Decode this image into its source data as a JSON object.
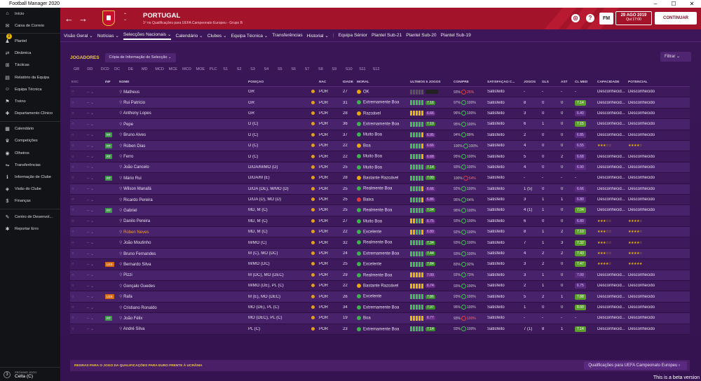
{
  "window": {
    "title": "Football Manager 2020",
    "controls": [
      "–",
      "☐",
      "✕"
    ]
  },
  "sidebar": {
    "items": [
      {
        "label": "Início",
        "icon": "home-icon"
      },
      {
        "label": "Caixa de Correio",
        "icon": "mail-icon",
        "badge": "2"
      },
      {
        "label": "Plantel",
        "icon": "squad-icon"
      },
      {
        "label": "Dinâmica",
        "icon": "dynamics-icon"
      },
      {
        "label": "Tácticas",
        "icon": "tactics-icon"
      },
      {
        "label": "Relatório da Equipa",
        "icon": "report-icon"
      },
      {
        "label": "Equipa Técnica",
        "icon": "staff-icon"
      },
      {
        "label": "Treino",
        "icon": "training-icon"
      },
      {
        "label": "Departamento Clínico",
        "icon": "medical-icon"
      },
      {
        "label": "Calendário",
        "icon": "calendar-icon"
      },
      {
        "label": "Competições",
        "icon": "trophy-icon"
      },
      {
        "label": "Olheiros",
        "icon": "scouting-icon"
      },
      {
        "label": "Transferências",
        "icon": "transfer-icon"
      },
      {
        "label": "Informação de Clube",
        "icon": "club-info-icon"
      },
      {
        "label": "Visão do Clube",
        "icon": "vision-icon"
      },
      {
        "label": "Finanças",
        "icon": "finance-icon"
      },
      {
        "label": "Centro de Desenvol...",
        "icon": "development-icon"
      },
      {
        "label": "Reportar Erro",
        "icon": "bug-icon"
      }
    ],
    "next_match": {
      "label": "PRÓXIMO JOGO",
      "value": "Celta (C)",
      "num": "3"
    }
  },
  "header": {
    "title": "PORTUGAL",
    "subtitle": "1º no Qualificações para UEFA Campeonato Europeu - Grupo B",
    "fm": "FM",
    "date": "29 AGO 2019",
    "time": "Qui 17:00",
    "continue": "CONTINUAR"
  },
  "subnav": {
    "items": [
      "Visão Geral ⌄",
      "Notícias ⌄",
      "Selecções Nacionais ⌄",
      "Calendário ⌄",
      "Clubes ⌄",
      "Equipa Técnica ⌄",
      "Transferências",
      "Historial ⌄"
    ],
    "items2": [
      "Equipa Sénior",
      "Plantel Sub-21",
      "Plantel Sub-20",
      "Plantel Sub-19"
    ]
  },
  "toolbar": {
    "label": "JOGADORES",
    "view": "Cópia de Informação de Selecção ⌄",
    "filter": "Filtrar ⌄"
  },
  "pos_filters": [
    "GR",
    "DD",
    "DCD",
    "DC",
    "DE",
    "MD",
    "MCD",
    "MCE",
    "MCO",
    "MOE",
    "PLC",
    "S1",
    "S2",
    "S3",
    "S4",
    "S5",
    "S6",
    "S7",
    "S8",
    "S9",
    "S10",
    "S11",
    "S12"
  ],
  "columns": {
    "esc": "ESC",
    "inf": "INF",
    "name": "NOME",
    "pos": "POSIÇÃO",
    "nac": "NAC",
    "age": "IDADE",
    "mor": "MORAL",
    "form": "ÚLTIMOS 5 JOGOS",
    "con": "CON/PRE",
    "sat": "SATISFAÇÃO C...",
    "jog": "JOGOS",
    "gls": "GLS",
    "ast": "AST",
    "cl": "CL MED",
    "cap": "CAPACIDADE",
    "pot": "POTENCIAL"
  },
  "players": [
    {
      "inf": "",
      "name": "Matheus",
      "pos": "GR",
      "nac": "POR",
      "age": "27",
      "morale": "OK",
      "m": "ok",
      "form": "nnnnn",
      "rat": "",
      "con": "93%",
      "pre": "25%",
      "pr": "r",
      "sat": "Satisfeito",
      "jog": "-",
      "gls": "-",
      "ast": "-",
      "cl": "-",
      "clc": "",
      "cap": "Desconhecid...",
      "pot": "Desconhecido",
      "name_color": ""
    },
    {
      "inf": "",
      "name": "Rui Patrício",
      "pos": "GR",
      "nac": "POR",
      "age": "31",
      "morale": "Extremamente Boa",
      "m": "good",
      "form": "ggggg",
      "rat": "7.16",
      "ratc": "g",
      "con": "97%",
      "pre": "100%",
      "pr": "g",
      "sat": "Satisfeito",
      "jog": "8",
      "gls": "0",
      "ast": "0",
      "cl": "7.14",
      "clc": "g",
      "cap": "Desconhecid...",
      "pot": "Desconhecido"
    },
    {
      "inf": "",
      "name": "Anthony Lopes",
      "pos": "GR",
      "nac": "POR",
      "age": "28",
      "morale": "Razoável",
      "m": "ok",
      "form": "yyyyy",
      "rat": "6.66",
      "ratc": "p",
      "con": "96%",
      "pre": "100%",
      "pr": "g",
      "sat": "Satisfeito",
      "jog": "3",
      "gls": "0",
      "ast": "0",
      "cl": "6.40",
      "clc": "p",
      "cap": "Desconhecid...",
      "pot": "Desconhecido"
    },
    {
      "inf": "",
      "name": "Pepe",
      "pos": "D (C)",
      "nac": "POR",
      "age": "36",
      "morale": "Extremamente Boa",
      "m": "good",
      "form": "ggggg",
      "rat": "7.10",
      "ratc": "g",
      "con": "95%",
      "pre": "100%",
      "pr": "g",
      "sat": "Satisfeito",
      "jog": "6",
      "gls": "1",
      "ast": "0",
      "cl": "7.15",
      "clc": "g",
      "cap": "Desconhecid...",
      "pot": "Desconhecido"
    },
    {
      "inf": "RT",
      "name": "Bruno Alves",
      "pos": "D (C)",
      "nac": "POR",
      "age": "37",
      "morale": "Muito Boa",
      "m": "good",
      "form": "ggggy",
      "rat": "6.95",
      "ratc": "p",
      "con": "94%",
      "pre": "89%",
      "pr": "g",
      "sat": "Satisfeito",
      "jog": "2",
      "gls": "0",
      "ast": "0",
      "cl": "6.85",
      "clc": "p",
      "cap": "Desconhecid...",
      "pot": "Desconhecido"
    },
    {
      "inf": "RT",
      "name": "Rúben Dias",
      "pos": "D (C)",
      "nac": "POR",
      "age": "22",
      "morale": "Boa",
      "m": "ok",
      "form": "ggggy",
      "rat": "6.66",
      "ratc": "p",
      "con": "100%",
      "pre": "100%",
      "pr": "g",
      "sat": "Satisfeito",
      "jog": "4",
      "gls": "0",
      "ast": "0",
      "cl": "6.55",
      "clc": "p",
      "cap": "★★★☆☆",
      "pot": "★★★★☆"
    },
    {
      "inf": "RT",
      "name": "Ferro",
      "pos": "D (C)",
      "nac": "POR",
      "age": "22",
      "morale": "Muito Boa",
      "m": "good",
      "form": "ggggy",
      "rat": "6.68",
      "ratc": "p",
      "con": "95%",
      "pre": "100%",
      "pr": "g",
      "sat": "Satisfeito",
      "jog": "5",
      "gls": "0",
      "ast": "2",
      "cl": "6.68",
      "clc": "p",
      "cap": "Desconhecid...",
      "pot": "Desconhecido"
    },
    {
      "inf": "",
      "name": "João Cancelo",
      "pos": "D/DA/M/MO (D)",
      "nac": "POR",
      "age": "25",
      "morale": "Muito Boa",
      "m": "good",
      "form": "ggggg",
      "rat": "7.14",
      "ratc": "g",
      "con": "93%",
      "pre": "100%",
      "pr": "g",
      "sat": "Satisfeito",
      "jog": "4",
      "gls": "0",
      "ast": "0",
      "cl": "6.90",
      "clc": "p",
      "cap": "Desconhecid...",
      "pot": "Desconhecido"
    },
    {
      "inf": "RT",
      "name": "Mário Rui",
      "pos": "D/DA/M (E)",
      "nac": "POR",
      "age": "28",
      "morale": "Bastante Razoável",
      "m": "ok",
      "form": "ggggg",
      "rat": "7.00",
      "ratc": "g",
      "con": "100%",
      "pre": "54%",
      "pr": "r",
      "sat": "Satisfeito",
      "jog": "-",
      "gls": "-",
      "ast": "-",
      "cl": "-",
      "clc": "",
      "cap": "Desconhecid...",
      "pot": "Desconhecido"
    },
    {
      "inf": "",
      "name": "Wilson Manafá",
      "pos": "D/DA (DE), M/MO (D)",
      "nac": "POR",
      "age": "25",
      "morale": "Realmente Boa",
      "m": "good",
      "form": "ggggy",
      "rat": "6.66",
      "ratc": "p",
      "con": "92%",
      "pre": "100%",
      "pr": "g",
      "sat": "Satisfeito",
      "jog": "1 (5)",
      "gls": "0",
      "ast": "0",
      "cl": "6.66",
      "clc": "p",
      "cap": "Desconhecid...",
      "pot": "Desconhecido"
    },
    {
      "inf": "",
      "name": "Ricardo Pereira",
      "pos": "D/DA (D), MO (D)",
      "nac": "POR",
      "age": "25",
      "morale": "Baixa",
      "m": "bad",
      "form": "ggggy",
      "rat": "6.86",
      "ratc": "p",
      "con": "95%",
      "pre": "64%",
      "pr": "g",
      "sat": "Satisfeito",
      "jog": "3",
      "gls": "1",
      "ast": "1",
      "cl": "6.80",
      "clc": "p",
      "cap": "Desconhecid...",
      "pot": "Desconhecido"
    },
    {
      "inf": "RT",
      "name": "Gabriel",
      "pos": "MD, M (C)",
      "nac": "POR",
      "age": "25",
      "morale": "Realmente Boa",
      "m": "good",
      "form": "ggggg",
      "rat": "7.04",
      "ratc": "g",
      "con": "96%",
      "pre": "100%",
      "pr": "g",
      "sat": "Satisfeito",
      "jog": "4 (1)",
      "gls": "1",
      "ast": "0",
      "cl": "7.04",
      "clc": "g",
      "cap": "Desconhecid...",
      "pot": "Desconhecido"
    },
    {
      "inf": "",
      "name": "Danilo Pereira",
      "pos": "MD, M (C)",
      "nac": "POR",
      "age": "27",
      "morale": "Muito Boa",
      "m": "good",
      "form": "yyggy",
      "rat": "6.75",
      "ratc": "p",
      "con": "93%",
      "pre": "100%",
      "pr": "g",
      "sat": "Satisfeito",
      "jog": "6",
      "gls": "0",
      "ast": "0",
      "cl": "6.80",
      "clc": "p",
      "cap": "★★★☆☆",
      "pot": "★★★★☆"
    },
    {
      "inf": "",
      "name": "Rúben Neves",
      "pos": "MD, M (C)",
      "nac": "POR",
      "age": "22",
      "morale": "Excelente",
      "m": "good",
      "form": "yyggy",
      "rat": "6.80",
      "ratc": "p",
      "con": "92%",
      "pre": "100%",
      "pr": "g",
      "sat": "Satisfeito",
      "jog": "8",
      "gls": "1",
      "ast": "2",
      "cl": "7.10",
      "clc": "g",
      "cap": "★★★☆☆",
      "pot": "★★★★☆",
      "name_color": "#f0a030"
    },
    {
      "inf": "",
      "name": "João Moutinho",
      "pos": "M/MO (C)",
      "nac": "POR",
      "age": "32",
      "morale": "Realmente Boa",
      "m": "good",
      "form": "ggggg",
      "rat": "7.34",
      "ratc": "g",
      "con": "93%",
      "pre": "100%",
      "pr": "g",
      "sat": "Satisfeito",
      "jog": "7",
      "gls": "1",
      "ast": "3",
      "cl": "7.32",
      "clc": "g",
      "cap": "★★★☆☆",
      "pot": "★★★★☆"
    },
    {
      "inf": "",
      "name": "Bruno Fernandes",
      "pos": "M (C), MO (DC)",
      "nac": "POR",
      "age": "24",
      "morale": "Extremamente Boa",
      "m": "good",
      "form": "ggggg",
      "rat": "7.44",
      "ratc": "g",
      "con": "93%",
      "pre": "100%",
      "pr": "g",
      "sat": "Satisfeito",
      "jog": "4",
      "gls": "2",
      "ast": "2",
      "cl": "7.43",
      "clc": "g",
      "cap": "★★★☆☆",
      "pot": "★★★★☆"
    },
    {
      "inf": "LES",
      "name": "Bernardo Silva",
      "pos": "M/MO (DC)",
      "nac": "POR",
      "age": "25",
      "morale": "Excelente",
      "m": "good",
      "form": "ggggg",
      "rat": "7.84",
      "ratc": "g",
      "con": "83%",
      "pre": "92%",
      "pr": "g",
      "sat": "Satisfeito",
      "jog": "3",
      "gls": "2",
      "ast": "0",
      "cl": "7.47",
      "clc": "g",
      "cap": "★★★★☆",
      "pot": "★★★★★"
    },
    {
      "inf": "",
      "name": "Pizzi",
      "pos": "M (DC), MO (DEC)",
      "nac": "POR",
      "age": "29",
      "morale": "Realmente Boa",
      "m": "good",
      "form": "yyyyy",
      "rat": "7.00",
      "ratc": "p",
      "con": "92%",
      "pre": "73%",
      "pr": "g",
      "sat": "Satisfeito",
      "jog": "3",
      "gls": "1",
      "ast": "0",
      "cl": "7.00",
      "clc": "p",
      "cap": "Desconhecid...",
      "pot": "Desconhecido"
    },
    {
      "inf": "",
      "name": "Gonçalo Guedes",
      "pos": "M/MO (DE), PL (C)",
      "nac": "POR",
      "age": "22",
      "morale": "Bastante Razoável",
      "m": "ok",
      "form": "yyyyy",
      "rat": "6.74",
      "ratc": "p",
      "con": "93%",
      "pre": "100%",
      "pr": "g",
      "sat": "Satisfeito",
      "jog": "2",
      "gls": "1",
      "ast": "0",
      "cl": "6.75",
      "clc": "p",
      "cap": "Desconhecid...",
      "pot": "Desconhecido"
    },
    {
      "inf": "LES",
      "name": "Rafa",
      "pos": "M (E), MO (DEC)",
      "nac": "POR",
      "age": "26",
      "morale": "Excelente",
      "m": "good",
      "form": "ggggg",
      "rat": "7.86",
      "ratc": "g",
      "con": "93%",
      "pre": "100%",
      "pr": "g",
      "sat": "Satisfeito",
      "jog": "5",
      "gls": "2",
      "ast": "1",
      "cl": "7.88",
      "clc": "g",
      "cap": "Desconhecid...",
      "pot": "Desconhecido"
    },
    {
      "inf": "",
      "name": "Cristiano Ronaldo",
      "pos": "MO (DE), PL (C)",
      "nac": "POR",
      "age": "34",
      "morale": "Extremamente Boa",
      "m": "good",
      "form": "ggggg",
      "rat": "7.97",
      "ratc": "g",
      "con": "96%",
      "pre": "100%",
      "pr": "g",
      "sat": "Satisfeito",
      "jog": "1",
      "gls": "0",
      "ast": "0",
      "cl": "8.00",
      "clc": "g",
      "cap": "Desconhecid...",
      "pot": "Desconhecido"
    },
    {
      "inf": "RT",
      "name": "João Félix",
      "pos": "MO (DEC), PL (C)",
      "nac": "POR",
      "age": "19",
      "morale": "Boa",
      "m": "good",
      "form": "yyyyy",
      "rat": "6.77",
      "ratc": "p",
      "con": "93%",
      "pre": "100%",
      "pr": "r",
      "sat": "Satisfeito",
      "jog": "-",
      "gls": "-",
      "ast": "-",
      "cl": "-",
      "clc": "",
      "cap": "Desconhecid...",
      "pot": "Desconhecido"
    },
    {
      "inf": "",
      "name": "André Silva",
      "pos": "PL (C)",
      "nac": "POR",
      "age": "23",
      "morale": "Extremamente Boa",
      "m": "good",
      "form": "ggggg",
      "rat": "7.14",
      "ratc": "g",
      "con": "93%",
      "pre": "100%",
      "pr": "g",
      "sat": "Satisfeito",
      "jog": "7 (1)",
      "gls": "8",
      "ast": "1",
      "cl": "7.14",
      "clc": "g",
      "cap": "Desconhecid...",
      "pot": "Desconhecido"
    }
  ],
  "footer": {
    "rules": "REGRAS PARA O JOGO DA QUALIFICAÇÕES PARA EURO FRENTE À UCRÂNIA",
    "competition": "Qualificações para UEFA Campeonato Europeu ›"
  },
  "beta": "This is a beta version"
}
